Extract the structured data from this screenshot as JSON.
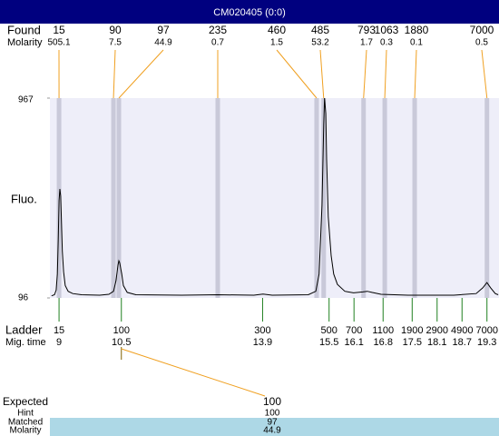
{
  "title": "CM020405 (0:0)",
  "chart_data": {
    "type": "line",
    "y_label": "Fluo.",
    "found_label": "Found",
    "molarity_label": "Molarity",
    "ladder_label": "Ladder",
    "mig_time_label": "Mig. time",
    "xlim": [
      8.78,
      19.59
    ],
    "ylim": [
      96,
      967
    ],
    "yticks": [
      96,
      967
    ],
    "color": "#000000",
    "background": "#eeeef9",
    "band_color": "#c9c9d9",
    "connector_color": "#f0a020",
    "ladder_color": "#208020",
    "x": [
      8.82,
      8.89,
      8.93,
      8.96,
      8.98,
      9.0,
      9.02,
      9.04,
      9.06,
      9.08,
      9.11,
      9.15,
      9.22,
      9.33,
      9.54,
      9.98,
      10.2,
      10.31,
      10.37,
      10.42,
      10.44,
      10.46,
      10.51,
      10.55,
      10.64,
      10.85,
      11.95,
      12.82,
      13.69,
      13.91,
      14.13,
      15.0,
      15.18,
      15.26,
      15.33,
      15.37,
      15.39,
      15.42,
      15.44,
      15.48,
      15.55,
      15.61,
      15.7,
      15.88,
      16.09,
      16.31,
      16.42,
      16.53,
      16.75,
      17.4,
      18.5,
      19.04,
      19.2,
      19.3,
      19.39,
      19.5,
      19.57
    ],
    "values": [
      105,
      110,
      130,
      200,
      350,
      520,
      571,
      540,
      420,
      300,
      210,
      150,
      125,
      115,
      110,
      108,
      112,
      125,
      170,
      240,
      258,
      250,
      200,
      150,
      120,
      110,
      108,
      110,
      108,
      113,
      108,
      110,
      125,
      200,
      500,
      850,
      967,
      900,
      700,
      450,
      280,
      200,
      155,
      125,
      118,
      122,
      125,
      120,
      112,
      108,
      108,
      115,
      140,
      163,
      140,
      115,
      110
    ],
    "found": {
      "size": [
        15,
        90,
        97,
        235,
        460,
        485,
        793,
        1063,
        1880,
        7000
      ],
      "molarity": [
        505.1,
        7.5,
        44.9,
        0.7,
        1.5,
        53.2,
        1.7,
        0.3,
        0.1,
        0.5
      ],
      "time": [
        9.0,
        10.31,
        10.44,
        12.82,
        15.2,
        15.37,
        16.33,
        16.84,
        17.56,
        19.3
      ]
    },
    "ladder": {
      "size": [
        15,
        100,
        300,
        500,
        700,
        1100,
        1900,
        2900,
        4900,
        7000
      ],
      "time": [
        9,
        10.5,
        13.9,
        15.5,
        16.1,
        16.8,
        17.5,
        18.1,
        18.7,
        19.3
      ]
    },
    "expected": {
      "labels": [
        "Expected",
        "Hint",
        "Matched",
        "Molarity"
      ],
      "values": [
        100,
        100,
        97,
        44.9
      ],
      "highlight": "#add8e6"
    }
  }
}
